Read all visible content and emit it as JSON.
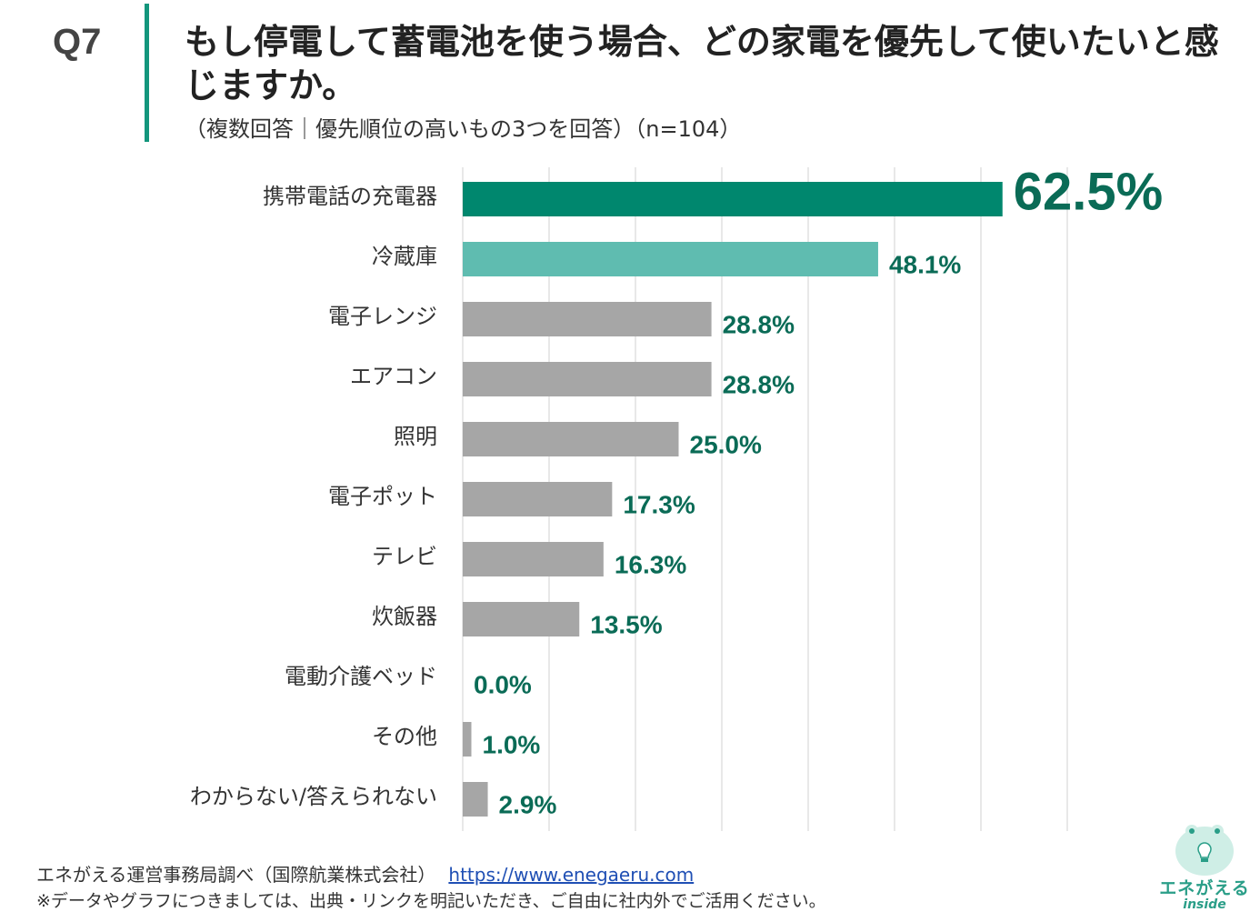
{
  "header": {
    "question": "Q7",
    "title": "もし停電して蓄電池を使う場合、どの家電を優先して使いたいと感じますか。",
    "subtitle": "（複数回答｜優先順位の高いもの3つを回答）（n=104）"
  },
  "colors": {
    "accent": "#13967c",
    "top_bar": "#00876e",
    "second_bar": "#5fbcb0",
    "other_bar": "#a6a6a6",
    "value_label": "#0a6b56",
    "grid": "#d9d9d9"
  },
  "chart_data": {
    "type": "bar",
    "orientation": "horizontal",
    "categories": [
      "携帯電話の充電器",
      "冷蔵庫",
      "電子レンジ",
      "エアコン",
      "照明",
      "電子ポット",
      "テレビ",
      "炊飯器",
      "電動介護ベッド",
      "その他",
      "わからない/答えられない"
    ],
    "values": [
      62.5,
      48.1,
      28.8,
      28.8,
      25.0,
      17.3,
      16.3,
      13.5,
      0.0,
      1.0,
      2.9
    ],
    "value_labels": [
      "62.5%",
      "48.1%",
      "28.8%",
      "28.8%",
      "25.0%",
      "17.3%",
      "16.3%",
      "13.5%",
      "0.0%",
      "1.0%",
      "2.9%"
    ],
    "xlim": [
      0,
      70
    ],
    "grid": true,
    "highlight": [
      0,
      1
    ]
  },
  "footer": {
    "source": "エネがえる運営事務局調べ（国際航業株式会社）",
    "url": "https://www.enegaeru.com",
    "note": "※データやグラフにつきましては、出典・リンクを明記いただき、ご自由に社内外でご活用ください。"
  },
  "logo": {
    "name": "エネがえる",
    "sub": "inside",
    "icon": "frog-lightbulb-icon"
  }
}
